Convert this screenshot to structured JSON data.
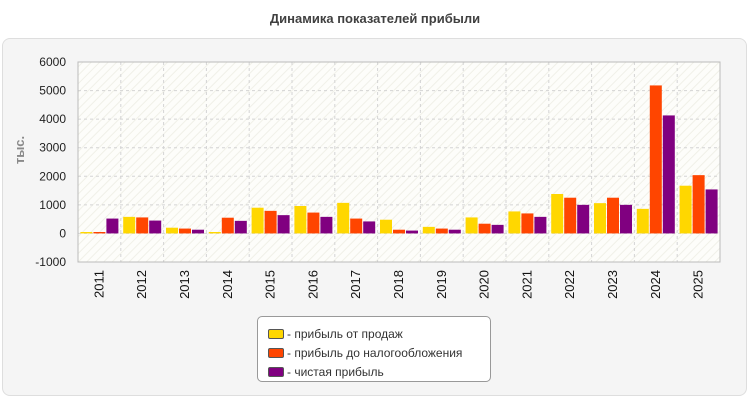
{
  "chart_data": {
    "type": "bar",
    "title": "Динамика показателей прибыли",
    "ylabel": "тыс.",
    "xlabel": "",
    "ylim": [
      -1000,
      6000
    ],
    "yticks": [
      -1000,
      0,
      1000,
      2000,
      3000,
      4000,
      5000,
      6000
    ],
    "categories": [
      "2011",
      "2012",
      "2013",
      "2014",
      "2015",
      "2016",
      "2017",
      "2018",
      "2019",
      "2020",
      "2021",
      "2022",
      "2023",
      "2024",
      "2025"
    ],
    "series": [
      {
        "name": "- прибыль от продаж",
        "color": "#ffd700",
        "values": [
          50,
          580,
          200,
          50,
          900,
          960,
          1070,
          480,
          230,
          560,
          770,
          1380,
          1060,
          860,
          1670
        ]
      },
      {
        "name": "- прибыль до налогообложения",
        "color": "#ff4500",
        "values": [
          50,
          560,
          170,
          550,
          790,
          730,
          520,
          130,
          170,
          340,
          700,
          1250,
          1250,
          5180,
          2040
        ]
      },
      {
        "name": "- чистая прибыль",
        "color": "#800080",
        "values": [
          520,
          450,
          130,
          440,
          640,
          580,
          420,
          100,
          130,
          300,
          580,
          1000,
          1000,
          4130,
          1540
        ]
      }
    ],
    "grid": true,
    "legend": "bottom"
  }
}
